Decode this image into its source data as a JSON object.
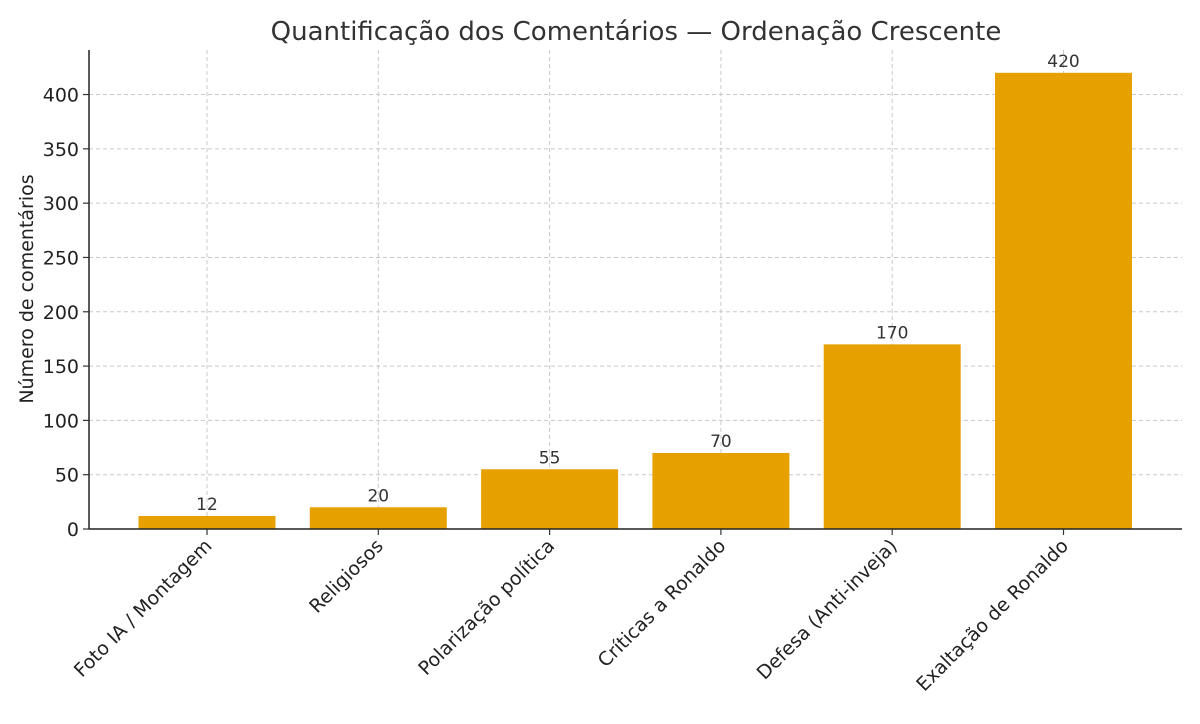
{
  "chart_data": {
    "type": "bar",
    "title": "Quantificação dos Comentários — Ordenação Crescente",
    "xlabel": "",
    "ylabel": "Número de comentários",
    "categories": [
      "Foto IA / Montagem",
      "Religiosos",
      "Polarização política",
      "Críticas a Ronaldo",
      "Defesa (Anti-inveja)",
      "Exaltação de Ronaldo"
    ],
    "values": [
      12,
      20,
      55,
      70,
      170,
      420
    ],
    "ylim": [
      0,
      441
    ],
    "yticks": [
      0,
      50,
      100,
      150,
      200,
      250,
      300,
      350,
      400
    ],
    "grid": true,
    "grid_style": "dashed",
    "data_labels": true,
    "bar_color": "#E6A000",
    "text_color": "#333333",
    "grid_color": "#c8c8c8"
  }
}
